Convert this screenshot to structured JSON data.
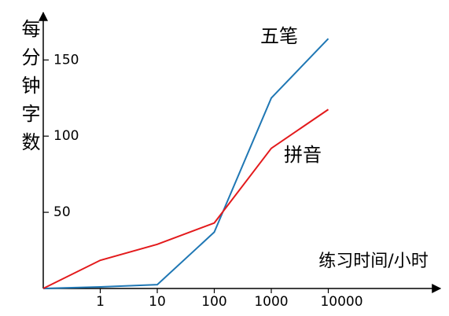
{
  "chart_data": {
    "type": "line",
    "y_label": "每分钟字数",
    "x_label": "练习时间/小时",
    "categories": [
      null,
      "1",
      "10",
      "100",
      "1000",
      "10000"
    ],
    "series": [
      {
        "name": "五笔",
        "color": "#1f77b4",
        "values": [
          0,
          1,
          2.5,
          37,
          125,
          164
        ]
      },
      {
        "name": "拼音",
        "color": "#e31a1c",
        "values": [
          0,
          18.5,
          29,
          43,
          92,
          117.5
        ]
      }
    ],
    "ylim": [
      0,
      178
    ],
    "yticks": [
      50,
      100,
      150
    ]
  }
}
